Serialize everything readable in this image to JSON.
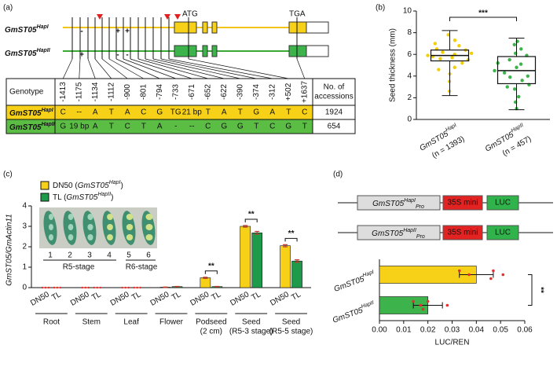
{
  "panel_a": {
    "label": "(a)",
    "genes": [
      {
        "name": "GmST05",
        "sup": "HapI"
      },
      {
        "name": "GmST05",
        "sup": "HapII"
      }
    ],
    "start_codon": "ATG",
    "stop_codon": "TGA",
    "indels": [
      {
        "HapI": "-",
        "HapII": "+"
      },
      {
        "HapI": "+",
        "HapII": "-"
      },
      {
        "HapI": "+",
        "HapII": "-"
      }
    ],
    "table": {
      "header": {
        "genotype": "Genotype",
        "positions": [
          "-1413",
          "-1175",
          "-1134",
          "-1112",
          "-900",
          "-801",
          "-794",
          "-733",
          "-671",
          "-652",
          "-622",
          "-390",
          "-374",
          "-312",
          "+502",
          "+1637"
        ],
        "accessions": [
          "No. of",
          "accessions"
        ]
      },
      "rows": [
        {
          "genotype": {
            "name": "GmST05",
            "sup": "HapI"
          },
          "cells": [
            "C",
            "--",
            "A",
            "T",
            "A",
            "C",
            "G",
            "TG",
            "21 bp",
            "T",
            "A",
            "T",
            "G",
            "A",
            "T",
            "C"
          ],
          "accessions": 1924
        },
        {
          "genotype": {
            "name": "GmST05",
            "sup": "HapII"
          },
          "cells": [
            "G",
            "19 bp",
            "A",
            "T",
            "C",
            "T",
            "A",
            "-",
            "--",
            "C",
            "G",
            "G",
            "T",
            "C",
            "G",
            "T"
          ],
          "accessions": 654
        }
      ]
    }
  },
  "chart_data": [
    {
      "type": "box",
      "label": "(b)",
      "ylabel": "Seed thickness (mm)",
      "categories": [
        {
          "name": "GmST05",
          "sup": "HapI",
          "note": "(n = 1393)"
        },
        {
          "name": "GmST05",
          "sup": "HapII",
          "note": "(n = 457)"
        }
      ],
      "colors": [
        "#f2d000",
        "#3cb44b"
      ],
      "boxes": [
        {
          "min": 2.2,
          "q1": 5.4,
          "median": 5.9,
          "q3": 6.4,
          "max": 8.2,
          "points": [
            5.9,
            6.1,
            5.5,
            6.4,
            5.2,
            6.8,
            7.3,
            4.8,
            6.0,
            5.7,
            4.2,
            3.5,
            7.8,
            6.2,
            5.6,
            2.6,
            6.5,
            5.8,
            4.6,
            7.0
          ]
        },
        {
          "min": 0.9,
          "q1": 3.3,
          "median": 4.5,
          "q3": 5.8,
          "max": 7.5,
          "points": [
            4.5,
            3.2,
            5.9,
            6.5,
            2.1,
            4.0,
            7.2,
            3.6,
            5.1,
            1.0,
            4.8,
            6.1,
            2.8,
            3.9,
            5.5,
            4.3,
            6.9,
            1.6,
            3.0,
            5.2
          ]
        }
      ],
      "significance": "***",
      "ylim": [
        0,
        10
      ],
      "yticks": [
        0,
        2,
        4,
        6,
        8,
        10
      ]
    },
    {
      "type": "bar",
      "label": "(c)",
      "ylabel": "GmST05/GmActin11",
      "categories": [
        [
          "Root"
        ],
        [
          "Stem"
        ],
        [
          "Leaf"
        ],
        [
          "Flower"
        ],
        [
          "Podseed",
          "(2 cm)"
        ],
        [
          "Seed",
          "(R5-3 stage)"
        ],
        [
          "Seed",
          "(R5-5 stage)"
        ]
      ],
      "bar_labels": [
        "DN50",
        "TL"
      ],
      "series": [
        {
          "name": {
            "prefix": "DN50 (",
            "gene": "GmST05",
            "sup": "HapI",
            "suffix": ")"
          },
          "color": "#f7d117",
          "values": [
            0,
            0,
            0,
            0.02,
            0.48,
            3.0,
            2.05
          ],
          "errors": [
            0,
            0,
            0,
            0.01,
            0.03,
            0.04,
            0.05
          ]
        },
        {
          "name": {
            "prefix": "TL (",
            "gene": "GmST05",
            "sup": "HapII",
            "suffix": ")"
          },
          "color": "#1e9a4b",
          "values": [
            0,
            0,
            0,
            0.05,
            0.05,
            2.68,
            1.3
          ],
          "errors": [
            0,
            0,
            0,
            0.01,
            0.01,
            0.07,
            0.06
          ]
        }
      ],
      "significance": [
        null,
        null,
        null,
        null,
        "**",
        "**",
        "**"
      ],
      "inset": {
        "numbers": [
          "1",
          "2",
          "3",
          "4",
          "5",
          "6"
        ],
        "stages": [
          "R5-stage",
          "R6-stage"
        ]
      },
      "ylim": [
        0,
        4
      ],
      "yticks": [
        0,
        1,
        2,
        3,
        4
      ]
    },
    {
      "type": "barh",
      "label": "(d)",
      "xlabel": "LUC/REN",
      "constructs": [
        {
          "promoter": {
            "name": "GmST05",
            "sup": "HapI",
            "sub": "Pro"
          },
          "core": "35S mini",
          "reporter": "LUC"
        },
        {
          "promoter": {
            "name": "GmST05",
            "sup": "HapII",
            "sub": "Pro"
          },
          "core": "35S mini",
          "reporter": "LUC"
        }
      ],
      "categories": [
        {
          "name": "GmST05",
          "sup": "HapI"
        },
        {
          "name": "GmST05",
          "sup": "HapII"
        }
      ],
      "colors": [
        "#f7d117",
        "#3cb44b"
      ],
      "values": [
        0.04,
        0.02
      ],
      "errors": [
        0.007,
        0.006
      ],
      "points": [
        [
          0.033,
          0.037,
          0.046,
          0.047,
          0.051
        ],
        [
          0.014,
          0.017,
          0.018,
          0.02,
          0.028
        ]
      ],
      "significance": "**",
      "xlim": [
        0,
        0.06
      ],
      "xticks": [
        {
          "value": 0,
          "label": "0.00"
        },
        0.01,
        0.02,
        0.03,
        0.04,
        0.05,
        0.06
      ]
    }
  ]
}
